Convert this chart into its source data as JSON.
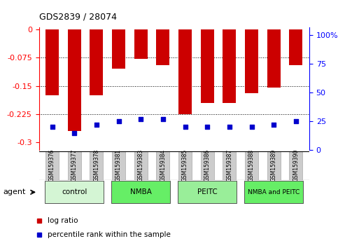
{
  "title": "GDS2839 / 28074",
  "categories": [
    "GSM159376",
    "GSM159377",
    "GSM159378",
    "GSM159381",
    "GSM159383",
    "GSM159384",
    "GSM159385",
    "GSM159386",
    "GSM159387",
    "GSM159388",
    "GSM159389",
    "GSM159390"
  ],
  "log_ratios": [
    -0.175,
    -0.27,
    -0.175,
    -0.105,
    -0.078,
    -0.095,
    -0.225,
    -0.195,
    -0.195,
    -0.17,
    -0.155,
    -0.095
  ],
  "percentile_ranks": [
    20,
    15,
    22,
    25,
    27,
    27,
    20,
    20,
    20,
    20,
    22,
    25
  ],
  "groups": [
    {
      "label": "control",
      "start": 0,
      "end": 3,
      "color": "#d4f5d4"
    },
    {
      "label": "NMBA",
      "start": 3,
      "end": 6,
      "color": "#66ee66"
    },
    {
      "label": "PEITC",
      "start": 6,
      "end": 9,
      "color": "#99ee99"
    },
    {
      "label": "NMBA and PEITC",
      "start": 9,
      "end": 12,
      "color": "#66ee66"
    }
  ],
  "ylim_left": [
    -0.32,
    0.005
  ],
  "ylim_right": [
    0,
    107
  ],
  "yticks_left": [
    0,
    -0.075,
    -0.15,
    -0.225,
    -0.3
  ],
  "yticks_right": [
    0,
    25,
    50,
    75,
    100
  ],
  "bar_color": "#cc0000",
  "percentile_color": "#0000cc",
  "agent_label": "agent",
  "legend_log_ratio": "log ratio",
  "legend_percentile": "percentile rank within the sample",
  "bar_width": 0.6
}
